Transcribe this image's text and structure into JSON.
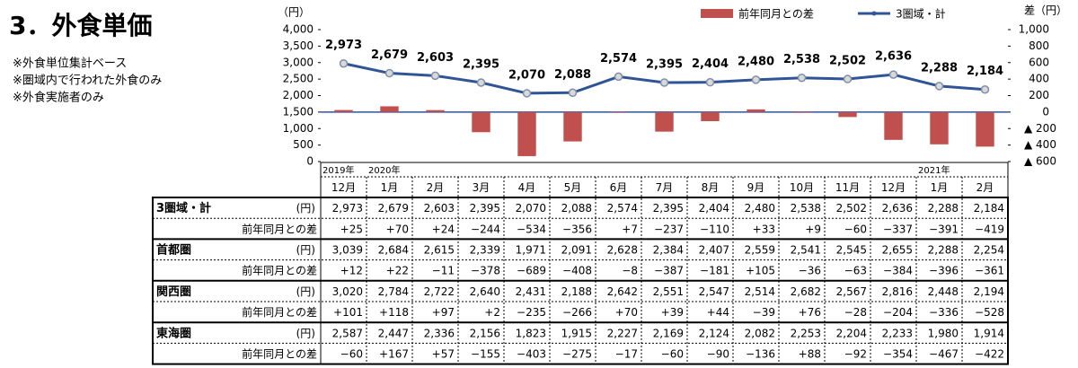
{
  "page_title": "3．外食単価",
  "notes": [
    "※外食単位集計ベース",
    "※圏域内で行われた外食のみ",
    "※外食実施者のみ"
  ],
  "chart_data": {
    "type": "combo",
    "y_label": "（円）",
    "y2_label": "差（円）",
    "categories": [
      "12月",
      "1月",
      "2月",
      "3月",
      "4月",
      "5月",
      "6月",
      "7月",
      "8月",
      "9月",
      "10月",
      "11月",
      "12月",
      "1月",
      "2月"
    ],
    "year_labels": [
      "2019年",
      "2020年",
      null,
      null,
      null,
      null,
      null,
      null,
      null,
      null,
      null,
      null,
      null,
      "2021年",
      null
    ],
    "series": [
      {
        "name": "前年同月との差",
        "type": "bar",
        "axis": "y2",
        "color": "#c0504d",
        "values": [
          25,
          70,
          24,
          -244,
          -534,
          -356,
          7,
          -237,
          -110,
          33,
          9,
          -60,
          -337,
          -391,
          -419
        ]
      },
      {
        "name": "3圏域・計",
        "type": "line",
        "color": "#2f5597",
        "values": [
          2973,
          2679,
          2603,
          2395,
          2070,
          2088,
          2574,
          2395,
          2404,
          2480,
          2538,
          2502,
          2636,
          2288,
          2184
        ],
        "value_labels": [
          "2,973",
          "2,679",
          "2,603",
          "2,395",
          "2,070",
          "2,088",
          "2,574",
          "2,395",
          "2,404",
          "2,480",
          "2,538",
          "2,502",
          "2,636",
          "2,288",
          "2,184"
        ]
      }
    ],
    "ylim": [
      0,
      4000
    ],
    "yticks": [
      0,
      500,
      {
        "value": 1000,
        "label": "1,000"
      },
      {
        "value": 1500,
        "label": "1,500"
      },
      {
        "value": 2000,
        "label": "2,000"
      },
      {
        "value": 2500,
        "label": "2,500"
      },
      {
        "value": 3000,
        "label": "3,000"
      },
      {
        "value": 3500,
        "label": "3,500"
      },
      {
        "value": 4000,
        "label": "4,000"
      }
    ],
    "y2lim": [
      -600,
      1000
    ],
    "y2ticks": [
      {
        "value": -600,
        "label": "▲ 600"
      },
      {
        "value": -400,
        "label": "▲ 400"
      },
      {
        "value": -200,
        "label": "▲ 200"
      },
      0,
      200,
      400,
      600,
      800,
      {
        "value": 1000,
        "label": "1,000"
      }
    ],
    "legend": "top-right"
  },
  "table": {
    "rows": [
      {
        "label": "3圏域・計",
        "unit": "(円)",
        "cells": [
          "2,973",
          "2,679",
          "2,603",
          "2,395",
          "2,070",
          "2,088",
          "2,574",
          "2,395",
          "2,404",
          "2,480",
          "2,538",
          "2,502",
          "2,636",
          "2,288",
          "2,184"
        ]
      },
      {
        "label": "前年同月との差",
        "cells": [
          "+25",
          "+70",
          "+24",
          "−244",
          "−534",
          "−356",
          "+7",
          "−237",
          "−110",
          "+33",
          "+9",
          "−60",
          "−337",
          "−391",
          "−419"
        ]
      },
      {
        "label": "首都圏",
        "unit": "(円)",
        "cells": [
          "3,039",
          "2,684",
          "2,615",
          "2,339",
          "1,971",
          "2,091",
          "2,628",
          "2,384",
          "2,407",
          "2,559",
          "2,541",
          "2,545",
          "2,655",
          "2,288",
          "2,254"
        ]
      },
      {
        "label": "前年同月との差",
        "cells": [
          "+12",
          "+22",
          "−11",
          "−378",
          "−689",
          "−408",
          "−8",
          "−387",
          "−181",
          "+105",
          "−36",
          "−63",
          "−384",
          "−396",
          "−361"
        ]
      },
      {
        "label": "関西圏",
        "unit": "(円)",
        "cells": [
          "3,020",
          "2,784",
          "2,722",
          "2,640",
          "2,431",
          "2,188",
          "2,642",
          "2,551",
          "2,547",
          "2,514",
          "2,682",
          "2,567",
          "2,816",
          "2,448",
          "2,194"
        ]
      },
      {
        "label": "前年同月との差",
        "cells": [
          "+101",
          "+118",
          "+97",
          "+2",
          "−235",
          "−266",
          "+70",
          "+39",
          "+44",
          "−39",
          "+76",
          "−28",
          "−204",
          "−336",
          "−528"
        ]
      },
      {
        "label": "東海圏",
        "unit": "(円)",
        "cells": [
          "2,587",
          "2,447",
          "2,336",
          "2,156",
          "1,823",
          "1,915",
          "2,227",
          "2,169",
          "2,124",
          "2,082",
          "2,253",
          "2,204",
          "2,233",
          "1,980",
          "1,914"
        ]
      },
      {
        "label": "前年同月との差",
        "cells": [
          "−60",
          "+167",
          "+57",
          "−155",
          "−403",
          "−275",
          "−17",
          "−60",
          "−90",
          "−136",
          "+88",
          "−92",
          "−354",
          "−467",
          "−422"
        ]
      }
    ]
  }
}
